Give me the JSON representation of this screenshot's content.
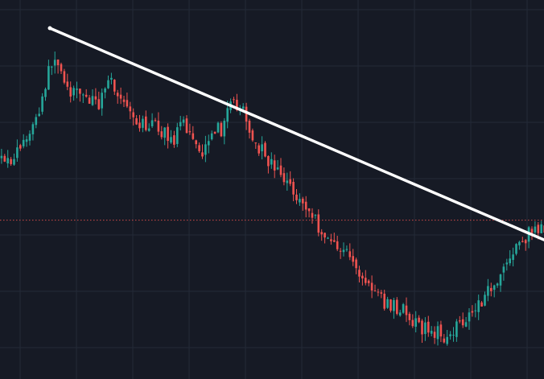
{
  "chart_data": {
    "type": "candlestick",
    "title": "",
    "xlabel": "",
    "ylabel": "",
    "ylim": [
      0,
      100
    ],
    "grid": true,
    "colors": {
      "background": "#161a25",
      "grid": "#242a38",
      "up": "#26a69a",
      "down": "#ef5350",
      "trendline": "#ffffff",
      "price_line": "#ef5350"
    },
    "current_price": 42.3,
    "trendline": {
      "from": {
        "index": 0,
        "value": 92.5
      },
      "to": {
        "index": 180,
        "value": 36.2
      }
    },
    "anchors": [
      [
        0,
        63
      ],
      [
        4,
        61
      ],
      [
        8,
        66
      ],
      [
        12,
        73
      ],
      [
        15,
        84
      ],
      [
        17,
        91
      ],
      [
        20,
        89
      ],
      [
        23,
        80
      ],
      [
        26,
        82
      ],
      [
        29,
        79
      ],
      [
        32,
        78
      ],
      [
        35,
        87
      ],
      [
        38,
        81
      ],
      [
        41,
        76
      ],
      [
        44,
        70
      ],
      [
        47,
        72
      ],
      [
        50,
        71
      ],
      [
        53,
        69
      ],
      [
        56,
        67
      ],
      [
        59,
        72
      ],
      [
        62,
        68
      ],
      [
        65,
        63
      ],
      [
        68,
        71
      ],
      [
        71,
        70
      ],
      [
        74,
        77
      ],
      [
        77,
        78
      ],
      [
        80,
        69
      ],
      [
        83,
        65
      ],
      [
        86,
        61
      ],
      [
        88,
        58
      ],
      [
        91,
        55
      ],
      [
        94,
        52
      ],
      [
        97,
        47
      ],
      [
        100,
        44
      ],
      [
        104,
        37
      ],
      [
        108,
        35
      ],
      [
        111,
        33
      ],
      [
        114,
        27
      ],
      [
        117,
        24
      ],
      [
        120,
        20
      ],
      [
        123,
        17
      ],
      [
        126,
        16
      ],
      [
        129,
        15
      ],
      [
        131,
        11
      ],
      [
        133,
        10
      ],
      [
        136,
        9
      ],
      [
        139,
        8
      ],
      [
        142,
        7
      ],
      [
        145,
        9
      ],
      [
        148,
        12
      ],
      [
        151,
        15
      ],
      [
        154,
        18
      ],
      [
        157,
        22
      ],
      [
        160,
        26
      ],
      [
        163,
        31
      ],
      [
        166,
        35
      ],
      [
        169,
        38
      ],
      [
        172,
        39
      ],
      [
        175,
        41
      ],
      [
        180,
        42.5
      ]
    ]
  }
}
